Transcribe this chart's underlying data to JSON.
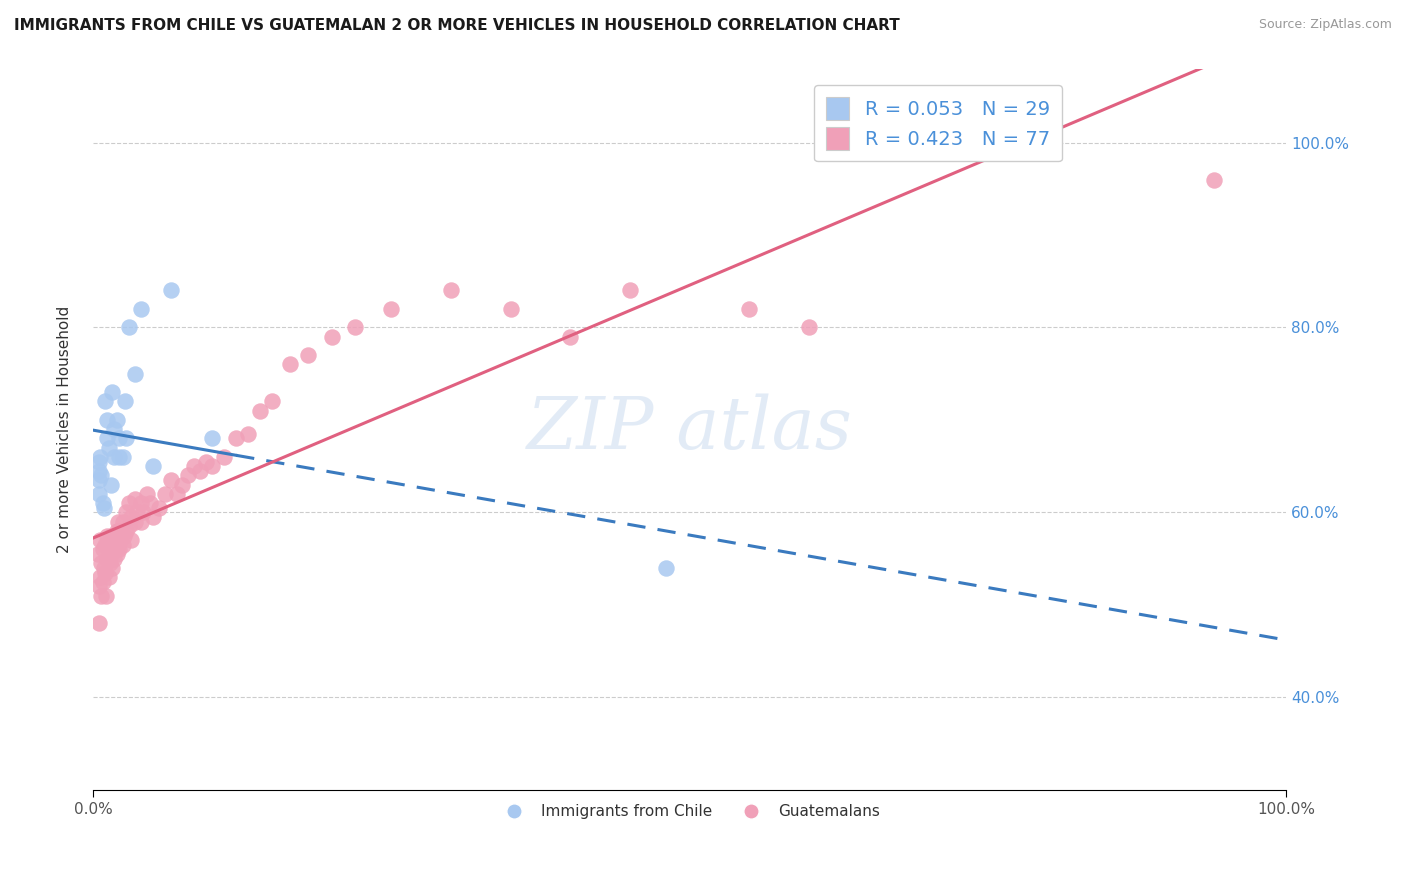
{
  "title": "IMMIGRANTS FROM CHILE VS GUATEMALAN 2 OR MORE VEHICLES IN HOUSEHOLD CORRELATION CHART",
  "source": "Source: ZipAtlas.com",
  "ylabel": "2 or more Vehicles in Household",
  "blue_color": "#a8c8f0",
  "pink_color": "#f0a0b8",
  "blue_line_color": "#3a7abf",
  "pink_line_color": "#e06080",
  "legend1_label": "R = 0.053   N = 29",
  "legend2_label": "R = 0.423   N = 77",
  "legend_label1": "Immigrants from Chile",
  "legend_label2": "Guatemalans",
  "chile_x": [
    0.005,
    0.005,
    0.005,
    0.005,
    0.006,
    0.007,
    0.008,
    0.009,
    0.01,
    0.012,
    0.012,
    0.013,
    0.015,
    0.016,
    0.018,
    0.018,
    0.02,
    0.022,
    0.022,
    0.025,
    0.027,
    0.028,
    0.03,
    0.035,
    0.04,
    0.05,
    0.065,
    0.1,
    0.48
  ],
  "chile_y": [
    0.62,
    0.635,
    0.645,
    0.655,
    0.66,
    0.64,
    0.61,
    0.605,
    0.72,
    0.68,
    0.7,
    0.67,
    0.63,
    0.73,
    0.69,
    0.66,
    0.7,
    0.68,
    0.66,
    0.66,
    0.72,
    0.68,
    0.8,
    0.75,
    0.82,
    0.65,
    0.84,
    0.68,
    0.54
  ],
  "guatemala_x": [
    0.004,
    0.005,
    0.005,
    0.006,
    0.006,
    0.007,
    0.007,
    0.008,
    0.008,
    0.009,
    0.01,
    0.01,
    0.011,
    0.012,
    0.012,
    0.013,
    0.013,
    0.014,
    0.015,
    0.015,
    0.016,
    0.016,
    0.018,
    0.018,
    0.019,
    0.02,
    0.02,
    0.021,
    0.021,
    0.022,
    0.022,
    0.023,
    0.025,
    0.025,
    0.026,
    0.028,
    0.028,
    0.03,
    0.03,
    0.032,
    0.032,
    0.035,
    0.035,
    0.037,
    0.04,
    0.04,
    0.042,
    0.045,
    0.048,
    0.05,
    0.055,
    0.06,
    0.065,
    0.07,
    0.075,
    0.08,
    0.085,
    0.09,
    0.095,
    0.1,
    0.11,
    0.12,
    0.13,
    0.14,
    0.15,
    0.165,
    0.18,
    0.2,
    0.22,
    0.25,
    0.3,
    0.35,
    0.4,
    0.45,
    0.55,
    0.6,
    0.94
  ],
  "guatemala_y": [
    0.555,
    0.52,
    0.48,
    0.57,
    0.53,
    0.545,
    0.51,
    0.56,
    0.525,
    0.54,
    0.565,
    0.535,
    0.51,
    0.575,
    0.55,
    0.56,
    0.53,
    0.545,
    0.575,
    0.555,
    0.565,
    0.54,
    0.575,
    0.55,
    0.56,
    0.58,
    0.555,
    0.59,
    0.565,
    0.58,
    0.56,
    0.57,
    0.59,
    0.565,
    0.575,
    0.6,
    0.58,
    0.61,
    0.585,
    0.595,
    0.57,
    0.615,
    0.59,
    0.6,
    0.61,
    0.59,
    0.6,
    0.62,
    0.61,
    0.595,
    0.605,
    0.62,
    0.635,
    0.62,
    0.63,
    0.64,
    0.65,
    0.645,
    0.655,
    0.65,
    0.66,
    0.68,
    0.685,
    0.71,
    0.72,
    0.76,
    0.77,
    0.79,
    0.8,
    0.82,
    0.84,
    0.82,
    0.79,
    0.84,
    0.82,
    0.8,
    0.96
  ],
  "xlim_min": 0.0,
  "xlim_max": 1.0,
  "ylim_min": 0.3,
  "ylim_max": 1.08,
  "yticks": [
    0.4,
    0.6,
    0.8,
    1.0
  ],
  "ytick_labels": [
    "40.0%",
    "60.0%",
    "80.0%",
    "100.0%"
  ],
  "xticks": [
    0.0,
    1.0
  ],
  "xtick_labels": [
    "0.0%",
    "100.0%"
  ]
}
